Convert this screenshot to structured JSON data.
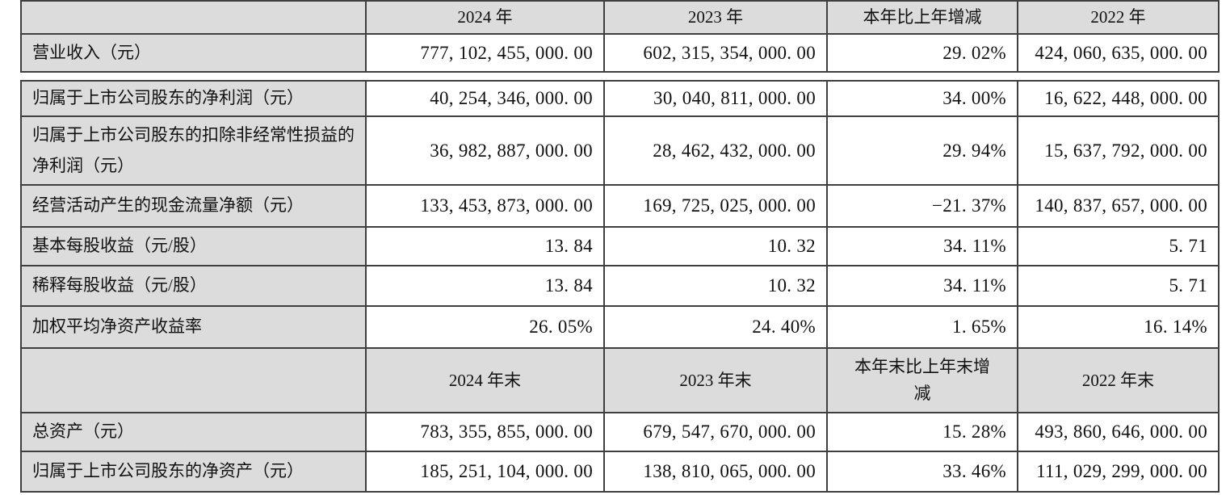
{
  "table": {
    "colors": {
      "header_background": "#dcdcdc",
      "label_background": "#dcdcdc",
      "cell_background": "#ffffff",
      "border": "#3f3f3f",
      "text": "#111111"
    },
    "header_row_annual": {
      "blank": "",
      "y2024": "2024 年",
      "y2023": "2023 年",
      "change": "本年比上年增减",
      "y2022": "2022 年"
    },
    "rows_annual": [
      {
        "label": "营业收入（元）",
        "y2024": "777, 102, 455, 000. 00",
        "y2023": "602, 315, 354, 000. 00",
        "change": "29. 02%",
        "y2022": "424, 060, 635, 000. 00"
      },
      {
        "label": "归属于上市公司股东的净利润（元）",
        "y2024": "40, 254, 346, 000. 00",
        "y2023": "30, 040, 811, 000. 00",
        "change": "34. 00%",
        "y2022": "16, 622, 448, 000. 00"
      },
      {
        "label": "归属于上市公司股东的扣除非经常性损益的净利润（元）",
        "y2024": "36, 982, 887, 000. 00",
        "y2023": "28, 462, 432, 000. 00",
        "change": "29. 94%",
        "y2022": "15, 637, 792, 000. 00"
      },
      {
        "label": "经营活动产生的现金流量净额（元）",
        "y2024": "133, 453, 873, 000. 00",
        "y2023": "169, 725, 025, 000. 00",
        "change": "−21. 37%",
        "y2022": "140, 837, 657, 000. 00"
      },
      {
        "label": "基本每股收益（元/股）",
        "y2024": "13. 84",
        "y2023": "10. 32",
        "change": "34. 11%",
        "y2022": "5. 71"
      },
      {
        "label": "稀释每股收益（元/股）",
        "y2024": "13. 84",
        "y2023": "10. 32",
        "change": "34. 11%",
        "y2022": "5. 71"
      },
      {
        "label": "加权平均净资产收益率",
        "y2024": "26. 05%",
        "y2023": "24. 40%",
        "change": "1. 65%",
        "y2022": "16. 14%"
      }
    ],
    "header_row_eoy": {
      "blank": "",
      "y2024": "2024 年末",
      "y2023": "2023 年末",
      "change": "本年末比上年末增减",
      "y2022": "2022 年末"
    },
    "rows_eoy": [
      {
        "label": "总资产（元）",
        "y2024": "783, 355, 855, 000. 00",
        "y2023": "679, 547, 670, 000. 00",
        "change": "15. 28%",
        "y2022": "493, 860, 646, 000. 00"
      },
      {
        "label": "归属于上市公司股东的净资产（元）",
        "y2024": "185, 251, 104, 000. 00",
        "y2023": "138, 810, 065, 000. 00",
        "change": "33. 46%",
        "y2022": "111, 029, 299, 000. 00"
      }
    ]
  }
}
